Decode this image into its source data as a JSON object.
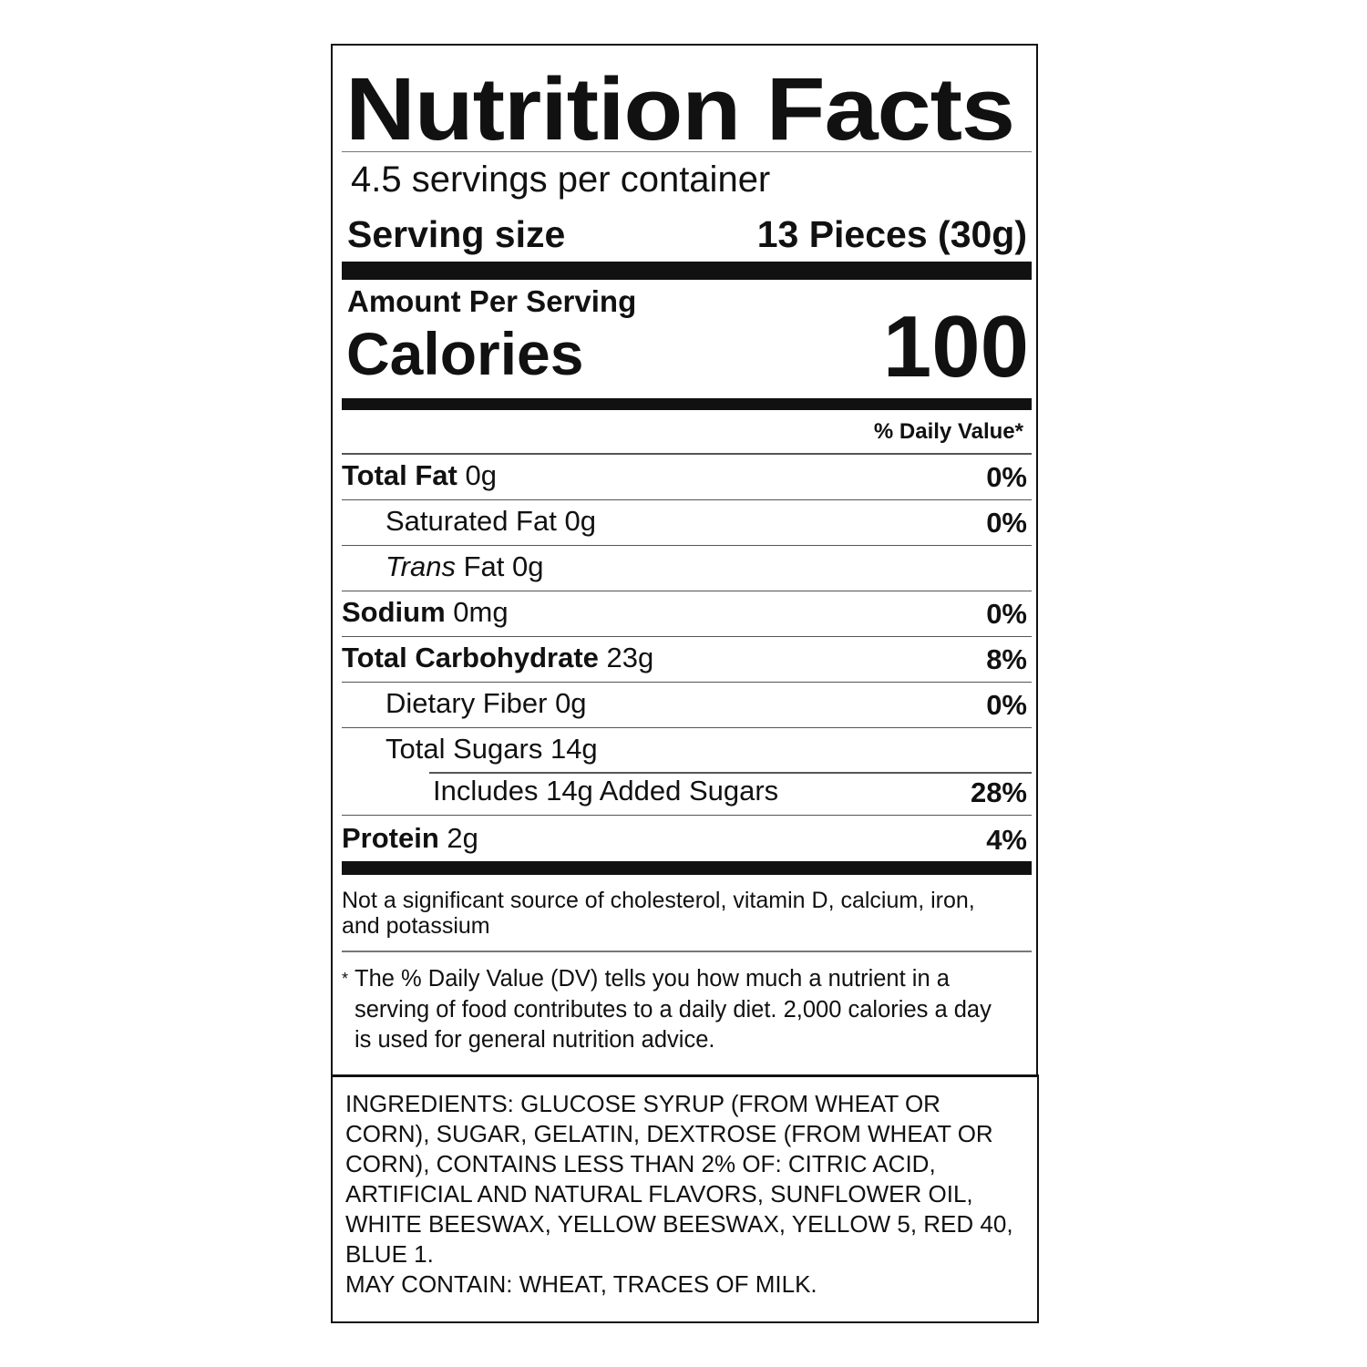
{
  "title": "Nutrition Facts",
  "servings_per_container": "4.5 servings per container",
  "serving_size": {
    "label": "Serving size",
    "value": "13 Pieces (30g)"
  },
  "amount_per_serving": "Amount Per Serving",
  "calories": {
    "label": "Calories",
    "value": "100"
  },
  "daily_value_header": "% Daily Value*",
  "nutrients": [
    {
      "name": "Total Fat",
      "amount": "0g",
      "dv": "0%"
    },
    {
      "name": "Saturated Fat",
      "amount": "0g",
      "dv": "0%"
    },
    {
      "name_italic": "Trans",
      "name": "Fat",
      "amount": "0g",
      "dv": ""
    },
    {
      "name": "Sodium",
      "amount": "0mg",
      "dv": "0%"
    },
    {
      "name": "Total Carbohydrate",
      "amount": "23g",
      "dv": "8%"
    },
    {
      "name": "Dietary Fiber",
      "amount": "0g",
      "dv": "0%"
    },
    {
      "name": "Total Sugars",
      "amount": "14g",
      "dv": ""
    },
    {
      "name": "Includes 14g Added Sugars",
      "amount": "",
      "dv": "28%"
    },
    {
      "name": "Protein",
      "amount": "2g",
      "dv": "4%"
    }
  ],
  "not_significant": "Not a significant source of cholesterol, vitamin D, calcium, iron, and potassium",
  "footnote_marker": "*",
  "footnote": "The % Daily Value (DV) tells you how much a nutrient in a serving of food contributes to a daily diet. 2,000 calories a day is used for general nutrition advice.",
  "ingredients": "INGREDIENTS: GLUCOSE SYRUP (FROM WHEAT OR CORN), SUGAR, GELATIN, DEXTROSE (FROM WHEAT OR CORN), CONTAINS LESS THAN 2% OF: CITRIC ACID, ARTIFICIAL AND NATURAL FLAVORS, SUNFLOWER OIL, WHITE BEESWAX, YELLOW BEESWAX, YELLOW 5, RED 40, BLUE 1.",
  "may_contain": "MAY CONTAIN: WHEAT, TRACES OF MILK."
}
